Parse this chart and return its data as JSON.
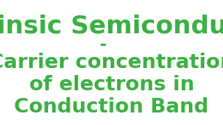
{
  "background_color": "#ffffff",
  "line1": "Intrinsic Semiconductors",
  "line2": "-",
  "line3": "Carrier concentration",
  "line4": "of electrons in",
  "line5": "Conduction Band",
  "text_color": "#3cb043",
  "line1_fontsize": 26,
  "line2_fontsize": 18,
  "line3_fontsize": 21,
  "line4_fontsize": 21,
  "line5_fontsize": 21,
  "font_weight": "bold"
}
